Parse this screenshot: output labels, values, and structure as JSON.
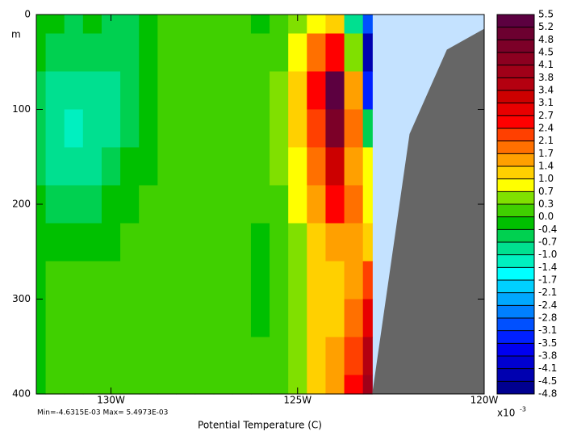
{
  "chart_data": {
    "type": "contour",
    "title": "Potential Temperature (C)",
    "y_label": "m",
    "annotation": "Min=-4.6315E-03  Max= 5.4973E-03",
    "colorbar_multiplier": "x10",
    "colorbar_exponent": "-3",
    "xlim": [
      -132,
      -120
    ],
    "xticks": [
      {
        "value": -130,
        "label": "130W"
      },
      {
        "value": -125,
        "label": "125W"
      },
      {
        "value": -120,
        "label": "120W"
      }
    ],
    "ylim": [
      400,
      0
    ],
    "yticks": [
      0,
      100,
      200,
      300,
      400
    ],
    "missing_color": "#c4e2ff",
    "x": [
      -132,
      -131.5,
      -131,
      -130.5,
      -130,
      -129.5,
      -129,
      -128.5,
      -128,
      -127.5,
      -127,
      -126.5,
      -126,
      -125.5,
      -125,
      -124.5,
      -124,
      -123.5,
      -123
    ],
    "depth": [
      0,
      40,
      80,
      120,
      160,
      200,
      240,
      280,
      320,
      360,
      400
    ],
    "z": [
      [
        -0.2,
        -0.2,
        -0.5,
        -0.2,
        -0.5,
        -0.5,
        -0.2,
        0.1,
        0.1,
        0.1,
        0.1,
        0.1,
        -0.2,
        0.1,
        0.5,
        0.8,
        1.2,
        -0.8,
        -3.0
      ],
      [
        -0.2,
        -0.5,
        -0.6,
        -0.5,
        -0.6,
        -0.5,
        -0.2,
        0.1,
        0.1,
        0.1,
        0.1,
        0.1,
        0.1,
        0.2,
        0.8,
        1.8,
        2.5,
        0.5,
        -4.5
      ],
      [
        -0.5,
        -0.8,
        -0.9,
        -0.8,
        -0.8,
        -0.5,
        -0.2,
        0.1,
        0.1,
        0.1,
        0.1,
        0.1,
        0.1,
        0.3,
        1.0,
        2.5,
        5.2,
        1.5,
        -3.5
      ],
      [
        -0.6,
        -1.0,
        -1.1,
        -0.9,
        -0.8,
        -0.5,
        -0.2,
        0.1,
        0.1,
        0.1,
        0.1,
        0.1,
        0.1,
        0.3,
        1.0,
        2.2,
        4.5,
        2.0,
        -0.5
      ],
      [
        -0.5,
        -0.8,
        -0.9,
        -0.8,
        -0.5,
        -0.3,
        -0.1,
        0.1,
        0.1,
        0.1,
        0.1,
        0.1,
        0.1,
        0.3,
        0.8,
        1.8,
        3.2,
        1.5,
        0.8
      ],
      [
        -0.3,
        -0.5,
        -0.6,
        -0.5,
        -0.3,
        -0.1,
        0.1,
        0.1,
        0.1,
        0.1,
        0.1,
        0.1,
        0.1,
        0.2,
        0.7,
        1.5,
        2.4,
        1.8,
        0.9
      ],
      [
        -0.2,
        -0.2,
        -0.3,
        -0.2,
        -0.1,
        0.1,
        0.1,
        0.1,
        0.1,
        0.1,
        0.1,
        0.1,
        -0.2,
        0.2,
        0.6,
        1.2,
        1.6,
        1.4,
        1.2
      ],
      [
        -0.1,
        0.1,
        0.1,
        0.1,
        0.1,
        0.1,
        0.1,
        0.1,
        0.1,
        0.1,
        0.1,
        0.1,
        -0.2,
        0.2,
        0.5,
        1.1,
        1.3,
        1.6,
        2.2
      ],
      [
        -0.1,
        0.1,
        0.1,
        0.1,
        0.1,
        0.1,
        0.1,
        0.1,
        0.1,
        0.1,
        0.1,
        0.1,
        -0.2,
        0.1,
        0.4,
        1.1,
        1.3,
        1.9,
        3.0
      ],
      [
        -0.1,
        0.1,
        0.1,
        0.1,
        0.1,
        0.1,
        0.1,
        0.1,
        0.1,
        0.1,
        0.1,
        0.1,
        0.1,
        0.1,
        0.4,
        1.1,
        1.4,
        2.2,
        3.5
      ],
      [
        -0.1,
        0.1,
        0.1,
        0.1,
        0.1,
        0.1,
        0.1,
        0.1,
        0.1,
        0.1,
        0.1,
        0.1,
        0.1,
        0.1,
        0.4,
        1.0,
        1.4,
        2.4,
        3.8
      ]
    ],
    "levels": [
      5.5,
      5.2,
      4.8,
      4.5,
      4.1,
      3.8,
      3.4,
      3.1,
      2.7,
      2.4,
      2.1,
      1.7,
      1.4,
      {
        "value": 1.0,
        "label": "1.0"
      },
      0.7,
      0.3,
      {
        "value": 0.0,
        "label": "0.0"
      },
      -0.4,
      -0.7,
      {
        "value": -1.0,
        "label": "-1.0"
      },
      -1.4,
      -1.7,
      -2.1,
      -2.4,
      -2.8,
      -3.1,
      -3.5,
      -3.8,
      -4.1,
      -4.5,
      -4.8
    ],
    "level_colors": [
      "#5c0040",
      "#6c0030",
      "#7c0028",
      "#8c0020",
      "#a00018",
      "#b40010",
      "#cc0000",
      "#e80000",
      "#ff0000",
      "#ff4000",
      "#ff7000",
      "#ffa000",
      "#ffd000",
      "#ffff00",
      "#80e000",
      "#40d000",
      "#00c000",
      "#00d050",
      "#00e090",
      "#00f0c0",
      "#00ffff",
      "#00d0ff",
      "#00a8ff",
      "#0080ff",
      "#0050ff",
      "#0020ff",
      "#0000f0",
      "#0000d0",
      "#0000b0",
      "#000090",
      "#200060"
    ],
    "bottom": {
      "color": "#666666",
      "x": [
        -123,
        -122,
        -121,
        -120
      ],
      "depth": [
        400,
        126,
        37,
        15
      ]
    }
  }
}
